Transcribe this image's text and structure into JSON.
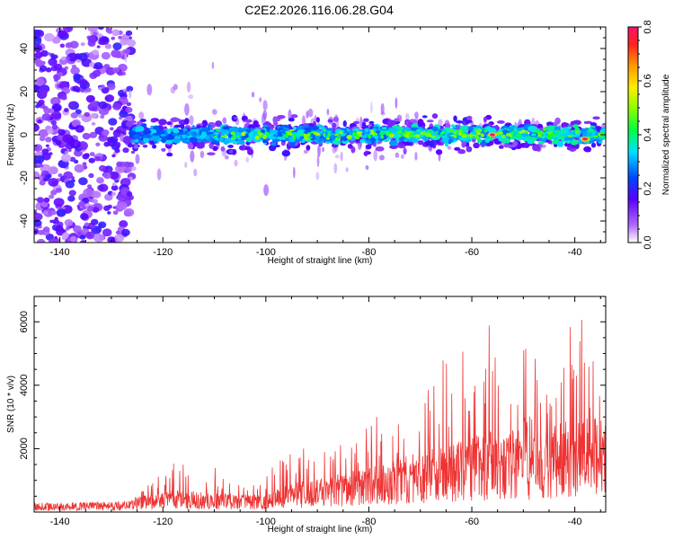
{
  "title": "C2E2.2026.116.06.28.G04",
  "chart_data": [
    {
      "type": "heatmap",
      "name": "spectrogram",
      "xlabel": "Height of straight line (km)",
      "ylabel": "Frequency (Hz)",
      "xlim": [
        -145,
        -34
      ],
      "ylim": [
        -50,
        50
      ],
      "xticks": [
        -140,
        -120,
        -100,
        -80,
        -60,
        -40
      ],
      "yticks": [
        -40,
        -20,
        0,
        20,
        40
      ],
      "xtick_labels": [
        "-140",
        "-120",
        "-100",
        "-80",
        "-60",
        "-40"
      ],
      "ytick_labels": [
        "-40",
        "-20",
        "0",
        "20",
        "40"
      ],
      "description_band": {
        "noise_region_x": [
          -145,
          -126
        ],
        "signal_band_x": [
          -126,
          -34
        ],
        "signal_center_hz": 0,
        "signal_halfwidth_hz": 5
      },
      "hotspots": [
        {
          "x": -64,
          "y": 2,
          "amplitude": 0.45
        },
        {
          "x": -56,
          "y": 0,
          "amplitude": 0.8
        },
        {
          "x": -38,
          "y": -2,
          "amplitude": 0.8
        },
        {
          "x": -48,
          "y": 0,
          "amplitude": 0.35
        },
        {
          "x": -77,
          "y": 3,
          "amplitude": 0.35
        }
      ]
    },
    {
      "type": "colorbar",
      "label": "Normalized spectral amplitude",
      "range": [
        0.0,
        0.8
      ],
      "ticks": [
        0.0,
        0.2,
        0.4,
        0.6,
        0.8
      ],
      "tick_labels": [
        "0.0",
        "0.2",
        "0.4",
        "0.6",
        "0.8"
      ]
    },
    {
      "type": "line",
      "name": "snr",
      "xlabel": "Height of straight line (km)",
      "ylabel": "SNR (10 * v/v)",
      "xlim": [
        -145,
        -34
      ],
      "ylim": [
        0,
        6800
      ],
      "xticks": [
        -140,
        -120,
        -100,
        -80,
        -60,
        -40
      ],
      "yticks": [
        2000,
        4000,
        6000
      ],
      "xtick_labels": [
        "-140",
        "-120",
        "-100",
        "-80",
        "-60",
        "-40"
      ],
      "ytick_labels": [
        "2000",
        "4000",
        "6000"
      ],
      "color": "#ee3333",
      "envelope": [
        {
          "x": -145,
          "base": 150,
          "peak": 350
        },
        {
          "x": -126,
          "base": 200,
          "peak": 400
        },
        {
          "x": -124,
          "base": 300,
          "peak": 900
        },
        {
          "x": -117,
          "base": 400,
          "peak": 2000
        },
        {
          "x": -110,
          "base": 350,
          "peak": 1500
        },
        {
          "x": -100,
          "base": 300,
          "peak": 1100
        },
        {
          "x": -96,
          "base": 500,
          "peak": 2500
        },
        {
          "x": -90,
          "base": 600,
          "peak": 2200
        },
        {
          "x": -80,
          "base": 800,
          "peak": 2900
        },
        {
          "x": -73,
          "base": 1000,
          "peak": 3600
        },
        {
          "x": -62,
          "base": 1300,
          "peak": 5400
        },
        {
          "x": -56,
          "base": 1500,
          "peak": 6400
        },
        {
          "x": -48,
          "base": 1500,
          "peak": 5000
        },
        {
          "x": -42,
          "base": 1700,
          "peak": 6800
        },
        {
          "x": -34,
          "base": 1700,
          "peak": 5500
        }
      ]
    }
  ]
}
